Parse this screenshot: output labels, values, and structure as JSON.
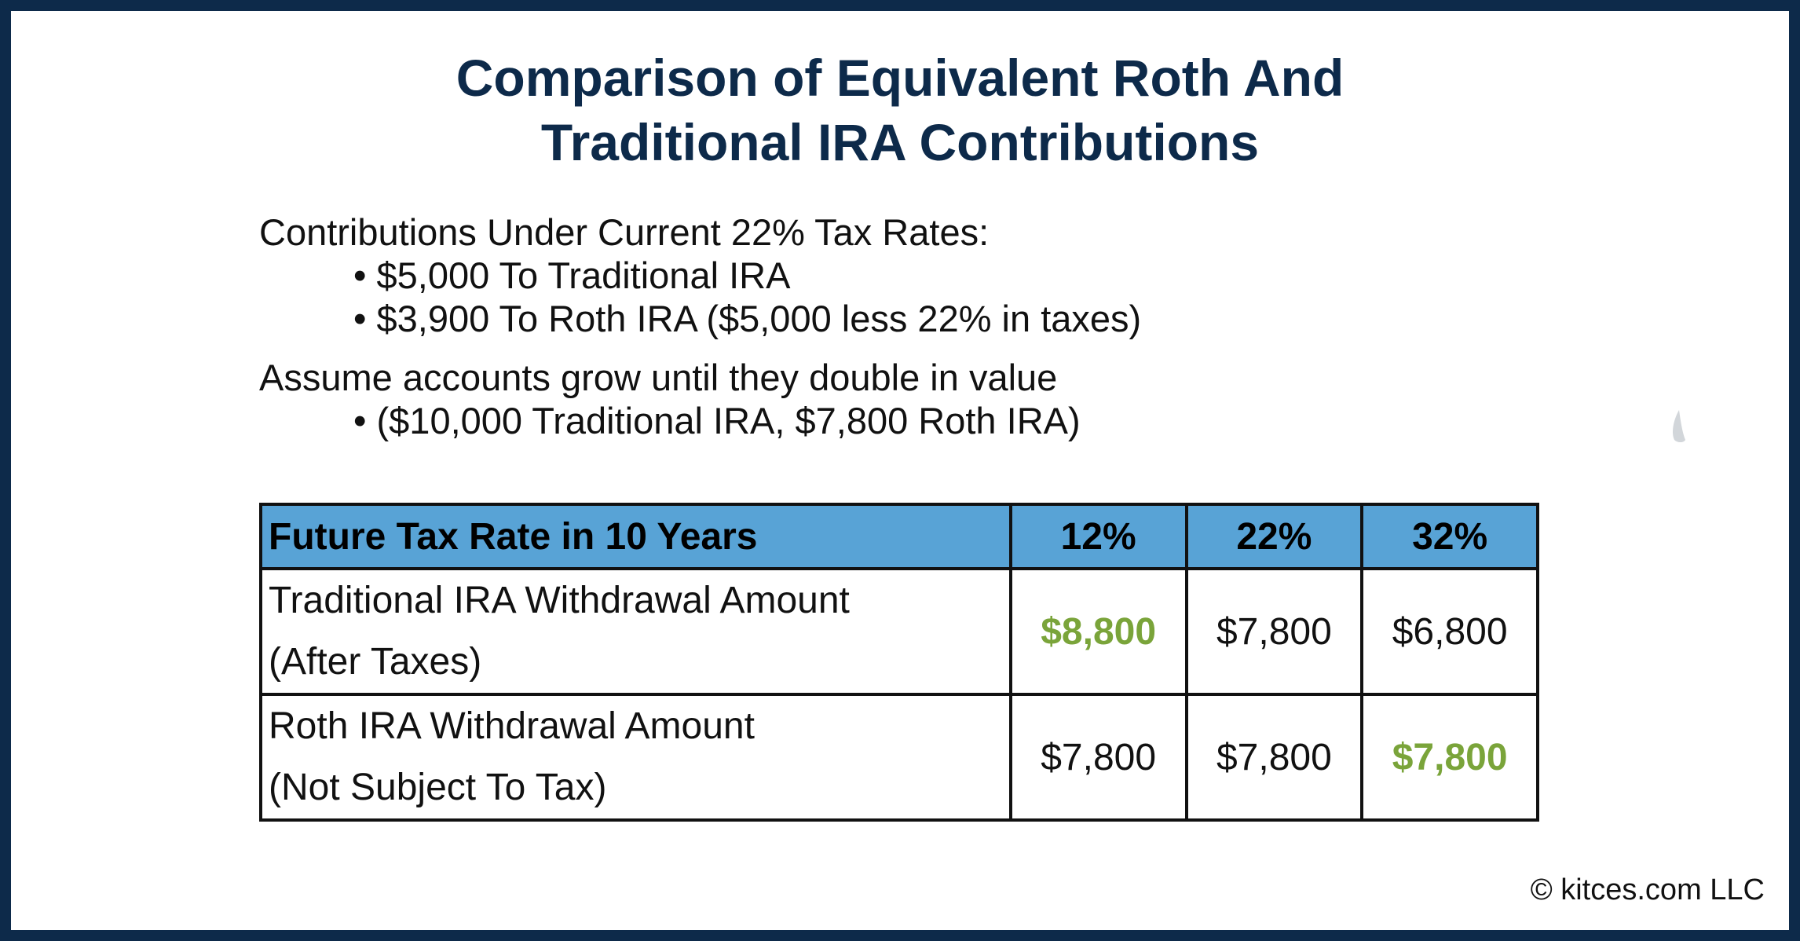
{
  "title": {
    "line1": "Comparison of Equivalent Roth And",
    "line2": "Traditional IRA Contributions"
  },
  "intro": {
    "heading": "Contributions Under Current 22% Tax Rates:",
    "bullets": [
      "• $5,000 To Traditional IRA",
      "• $3,900 To Roth IRA ($5,000 less 22% in taxes)"
    ],
    "assumption": "Assume accounts grow until they double in value",
    "assumption_bullet": "• ($10,000 Traditional IRA, $7,800 Roth IRA)"
  },
  "table": {
    "header_label": "Future Tax Rate in 10 Years",
    "rates": [
      "12%",
      "22%",
      "32%"
    ],
    "rows": [
      {
        "label_line1": "Traditional IRA Withdrawal Amount",
        "label_line2": "(After Taxes)",
        "values": [
          "$8,800",
          "$7,800",
          "$6,800"
        ]
      },
      {
        "label_line1": "Roth IRA Withdrawal Amount",
        "label_line2": "(Not Subject To Tax)",
        "values": [
          "$7,800",
          "$7,800",
          "$7,800"
        ]
      }
    ]
  },
  "colors": {
    "frame": "#0d2a4a",
    "header_fill": "#58a3d6",
    "highlight": "#7aa43a"
  },
  "footer": {
    "copyright": "© kitces.com LLC"
  }
}
